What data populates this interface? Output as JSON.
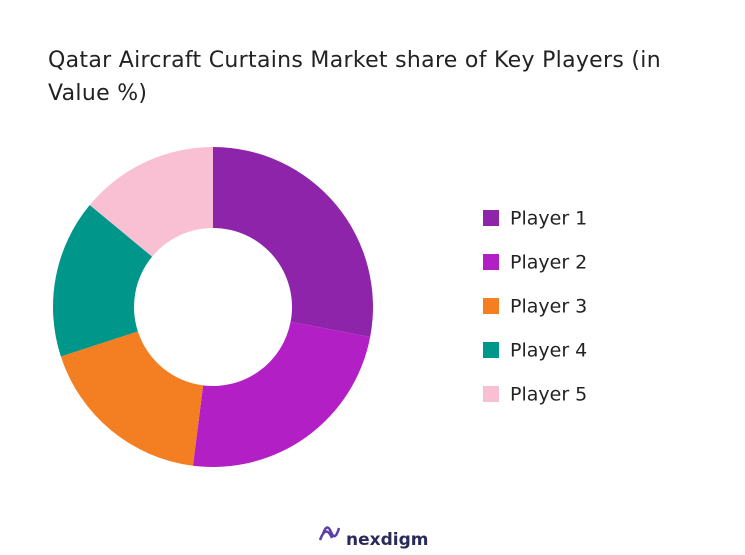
{
  "chart_data": {
    "type": "pie",
    "title": "Qatar Aircraft Curtains Market share of Key Players (in Value %)",
    "categories": [
      "Player 1",
      "Player 2",
      "Player 3",
      "Player 4",
      "Player 5"
    ],
    "values": [
      28,
      24,
      18,
      16,
      14
    ],
    "colors": [
      "#8e24aa",
      "#b21fc4",
      "#f47f22",
      "#00968a",
      "#f9bfd3"
    ],
    "legend": "right"
  },
  "footer": {
    "logo": "nexdigm"
  }
}
